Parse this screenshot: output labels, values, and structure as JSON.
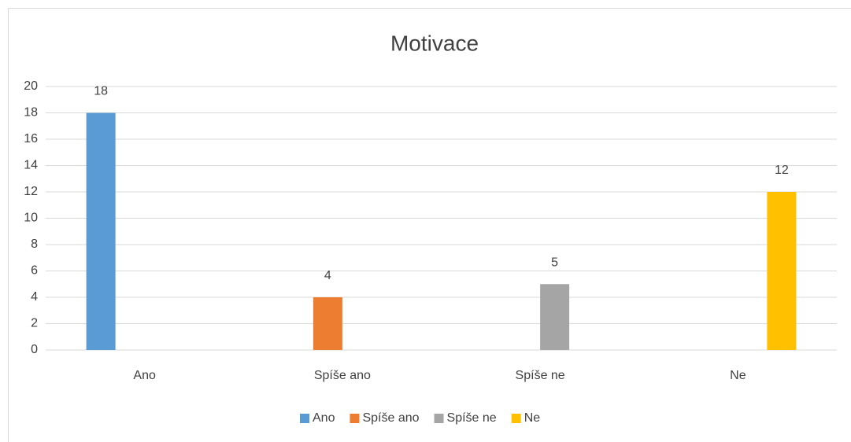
{
  "chart_data": {
    "type": "bar",
    "title": "Motivace",
    "categories": [
      "Ano",
      "Spíše ano",
      "Spíše ne",
      "Ne"
    ],
    "series": [
      {
        "name": "Ano",
        "color": "#5b9bd5",
        "values": [
          18,
          null,
          null,
          null
        ]
      },
      {
        "name": "Spíše ano",
        "color": "#ed7d31",
        "values": [
          null,
          4,
          null,
          null
        ]
      },
      {
        "name": "Spíše ne",
        "color": "#a5a5a5",
        "values": [
          null,
          null,
          5,
          null
        ]
      },
      {
        "name": "Ne",
        "color": "#ffc000",
        "values": [
          null,
          null,
          null,
          12
        ]
      }
    ],
    "ylim": [
      0,
      20
    ],
    "yticks": [
      0,
      2,
      4,
      6,
      8,
      10,
      12,
      14,
      16,
      18,
      20
    ],
    "grid": true,
    "legend": "bottom",
    "data_labels": true
  }
}
